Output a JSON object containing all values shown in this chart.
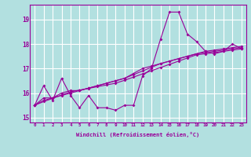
{
  "xlabel": "Windchill (Refroidissement éolien,°C)",
  "x_values": [
    0,
    1,
    2,
    3,
    4,
    5,
    6,
    7,
    8,
    9,
    10,
    11,
    12,
    13,
    14,
    15,
    16,
    17,
    18,
    19,
    20,
    21,
    22,
    23
  ],
  "line1": [
    15.5,
    16.3,
    15.7,
    16.6,
    15.9,
    15.4,
    15.9,
    15.4,
    15.4,
    15.3,
    15.5,
    15.5,
    16.7,
    17.0,
    18.2,
    19.3,
    19.3,
    18.4,
    18.1,
    17.7,
    17.6,
    17.7,
    18.0,
    17.8
  ],
  "line2": [
    15.5,
    15.8,
    15.8,
    15.9,
    16.0,
    16.1,
    16.2,
    16.3,
    16.4,
    16.5,
    16.6,
    16.8,
    17.0,
    17.1,
    17.2,
    17.3,
    17.4,
    17.5,
    17.6,
    17.7,
    17.75,
    17.8,
    17.85,
    17.9
  ],
  "line3": [
    15.5,
    15.7,
    15.8,
    16.0,
    16.1,
    16.1,
    16.2,
    16.3,
    16.4,
    16.5,
    16.6,
    16.75,
    16.9,
    17.05,
    17.2,
    17.3,
    17.4,
    17.5,
    17.6,
    17.65,
    17.7,
    17.75,
    17.8,
    17.85
  ],
  "line4": [
    15.5,
    15.65,
    15.78,
    15.92,
    16.05,
    16.12,
    16.19,
    16.26,
    16.33,
    16.4,
    16.52,
    16.65,
    16.78,
    16.91,
    17.04,
    17.17,
    17.3,
    17.43,
    17.56,
    17.6,
    17.65,
    17.7,
    17.75,
    17.8
  ],
  "color": "#990099",
  "bg_color": "#b2e0e0",
  "grid_color": "#ffffff",
  "ylim": [
    14.8,
    19.6
  ],
  "yticks": [
    15,
    16,
    17,
    18,
    19
  ],
  "xlim": [
    -0.5,
    23.5
  ]
}
